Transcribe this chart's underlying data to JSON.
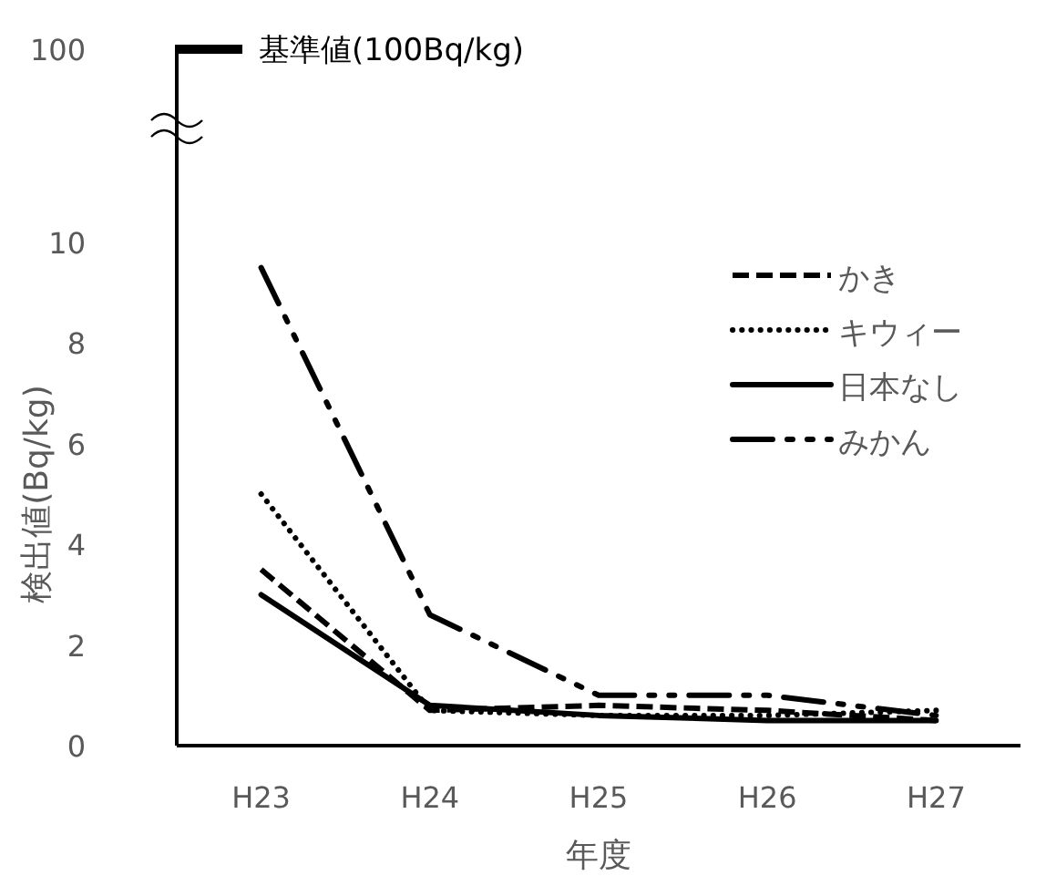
{
  "chart_data": [
    {
      "type": "other",
      "annotations": [
        "100",
        "基準値(100Bq/kg)"
      ]
    },
    {
      "type": "line",
      "xlabel": "年度",
      "ylabel": "検出値(Bq/kg)",
      "categories": [
        "H23",
        "H24",
        "H25",
        "H26",
        "H27"
      ],
      "series": [
        {
          "name": "かき",
          "color": "#000000",
          "line_style": "dashed",
          "values": [
            3.5,
            0.7,
            0.8,
            0.7,
            0.5
          ]
        },
        {
          "name": "キウィー",
          "color": "#000000",
          "line_style": "dotted",
          "values": [
            5.0,
            0.7,
            0.6,
            0.6,
            0.7
          ]
        },
        {
          "name": "日本なし",
          "color": "#000000",
          "line_style": "solid",
          "values": [
            3.0,
            0.8,
            0.6,
            0.5,
            0.5
          ]
        },
        {
          "name": "みかん",
          "color": "#000000",
          "line_style": "dashdotdot",
          "values": [
            9.5,
            2.6,
            1.0,
            1.0,
            0.6
          ]
        }
      ],
      "ylim": [
        0,
        10
      ],
      "yticks": [
        0,
        2,
        4,
        6,
        8,
        10
      ],
      "legend": "top right",
      "grid": false
    }
  ]
}
